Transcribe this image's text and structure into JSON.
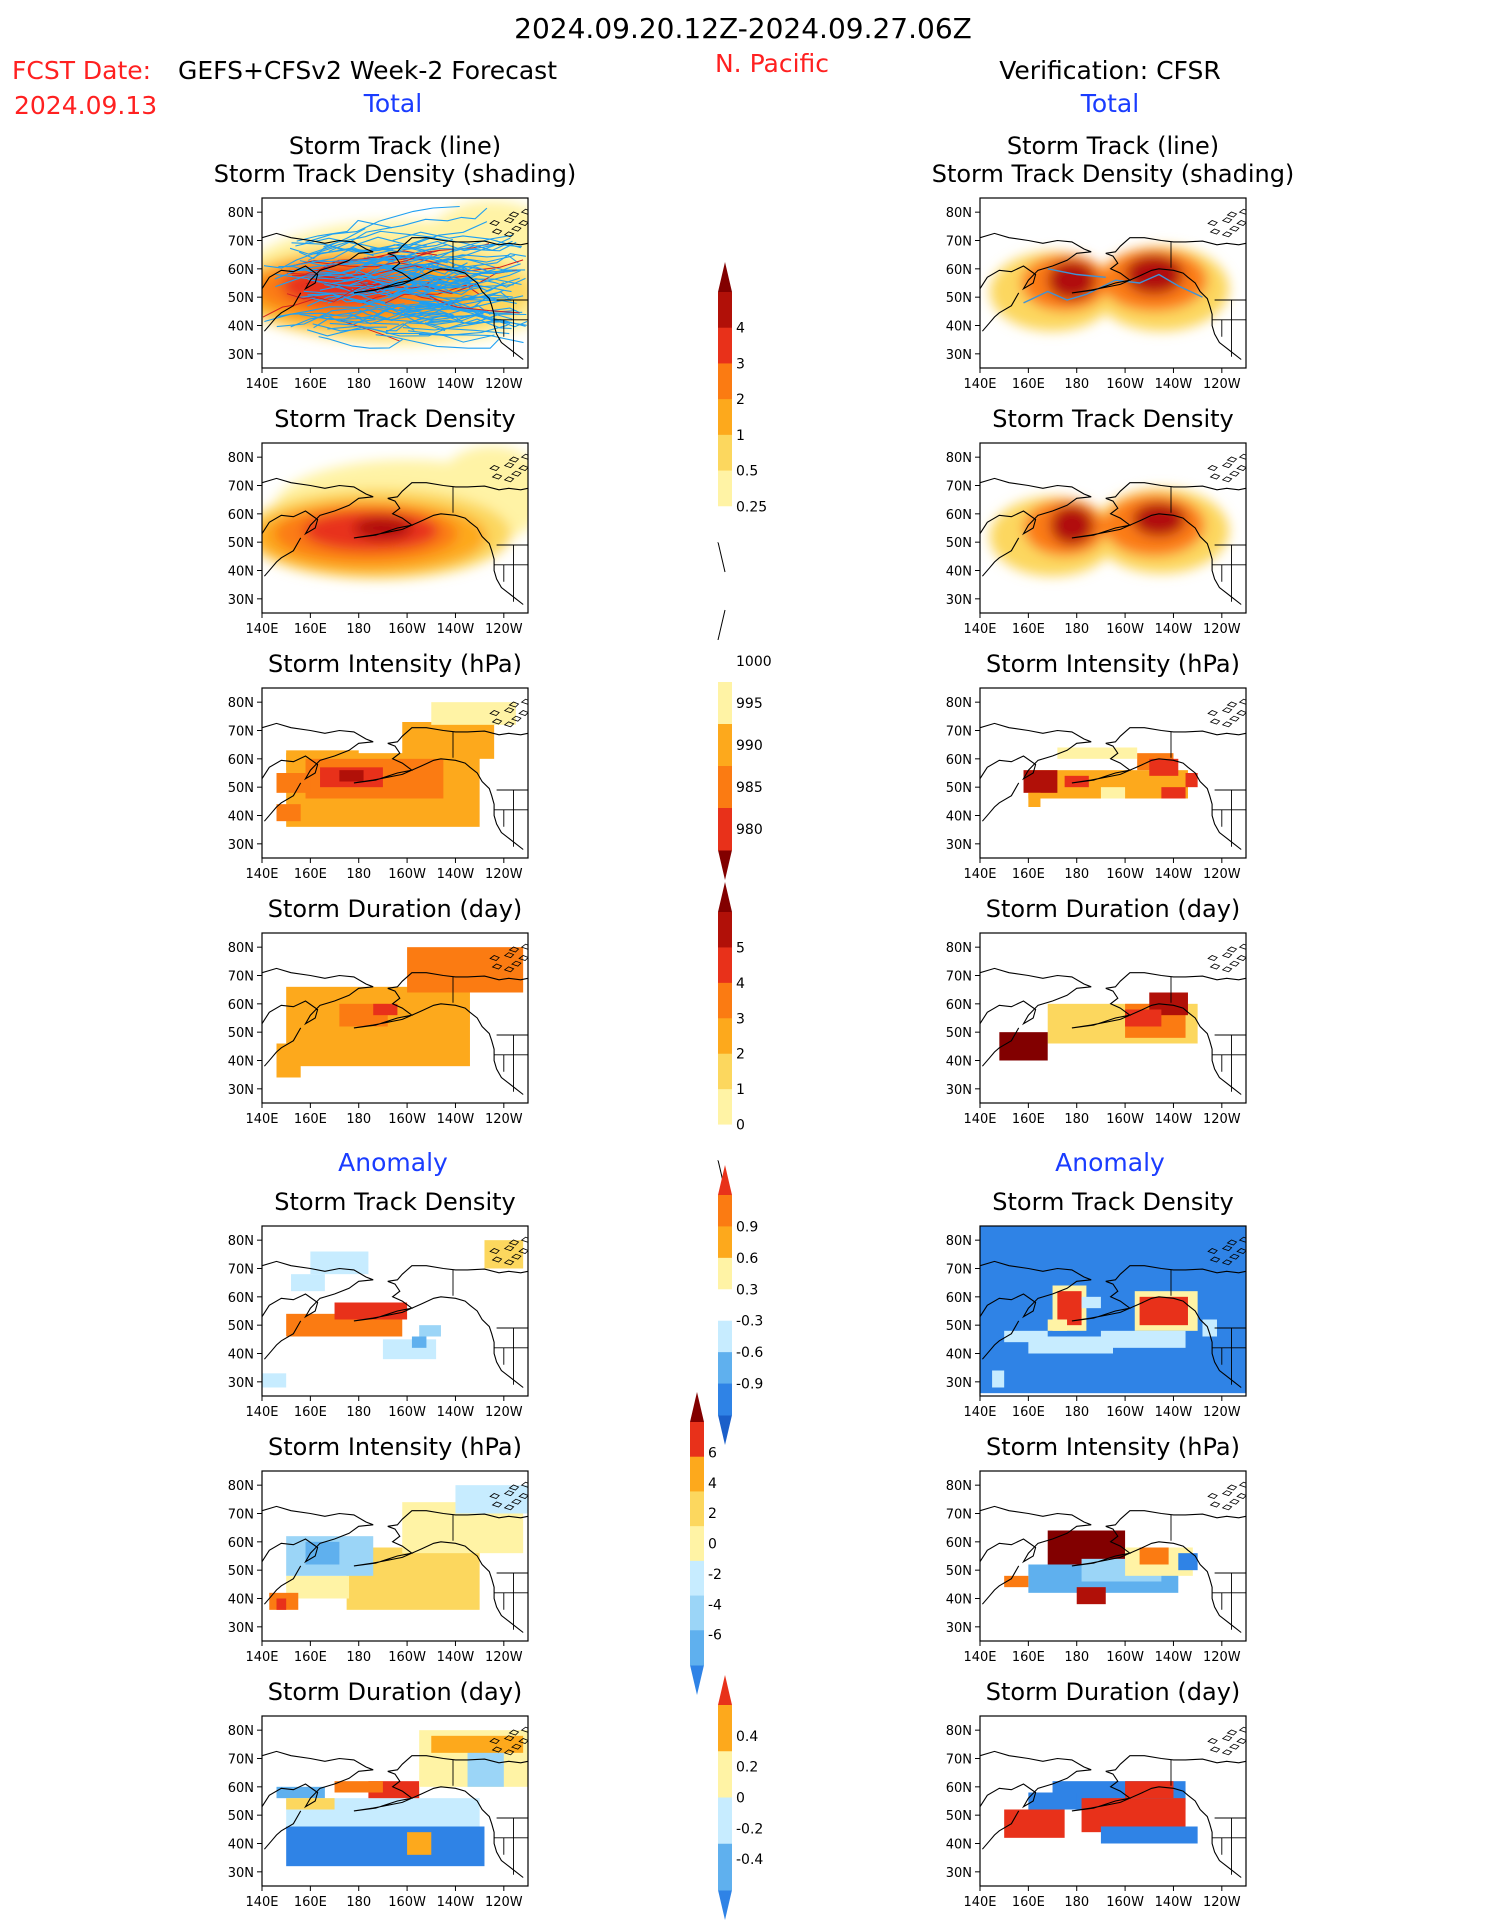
{
  "header": {
    "period": "2024.09.20.12Z-2024.09.27.06Z",
    "region": "N. Pacific",
    "fcst_date_label": "FCST Date:",
    "fcst_model": "GEFS+CFSv2 Week-2 Forecast",
    "fcst_date": "2024.09.13",
    "verification": "Verification: CFSR"
  },
  "section_labels": {
    "total": "Total",
    "anomaly": "Anomaly"
  },
  "panel_titles": {
    "track_line": "Storm Track (line)",
    "track_shading": "Storm Track Density (shading)",
    "density": "Storm Track Density",
    "intensity": "Storm Intensity (hPa)",
    "duration": "Storm Duration (day)"
  },
  "axes": {
    "lon_ticks": [
      "140E",
      "160E",
      "180",
      "160W",
      "140W",
      "120W"
    ],
    "lat_ticks": [
      "80N",
      "70N",
      "60N",
      "50N",
      "40N",
      "30N"
    ]
  },
  "colors": {
    "warm": [
      "#fff3a5",
      "#fcd75e",
      "#fda91c",
      "#fb7b12",
      "#e8311a",
      "#b11008",
      "#820000"
    ],
    "cool": [
      "#c7ecff",
      "#9bd5f7",
      "#5fb0ee",
      "#2f83e6",
      "#1b5fc9"
    ],
    "track_forecast": "#1e9ff2",
    "track_verification": "#3f93d6",
    "title_red": "#ff2020",
    "label_blue": "#1a3cff"
  },
  "colorbars": [
    {
      "id": "density-total",
      "labels": [
        "4",
        "3",
        "2",
        "1",
        "0.5",
        "0.25"
      ]
    },
    {
      "id": "intensity-total",
      "labels": [
        "1000",
        "995",
        "990",
        "985",
        "980"
      ]
    },
    {
      "id": "duration-total",
      "labels": [
        "5",
        "4",
        "3",
        "2",
        "1",
        "0"
      ]
    },
    {
      "id": "density-anomaly",
      "labels": [
        "0.9",
        "0.6",
        "0.3",
        "-0.3",
        "-0.6",
        "-0.9"
      ]
    },
    {
      "id": "intensity-anomaly",
      "labels": [
        "6",
        "4",
        "2",
        "0",
        "-2",
        "-4",
        "-6"
      ]
    },
    {
      "id": "duration-anomaly",
      "labels": [
        "0.4",
        "0.2",
        "0",
        "-0.2",
        "-0.4"
      ]
    }
  ],
  "chart_data": [
    {
      "id": "fcst-track",
      "type": "heatmap",
      "title": "Storm Track (line) / Storm Track Density (shading)",
      "source": "GEFS+CFSv2",
      "field": "track density with storm track lines"
    },
    {
      "id": "fcst-density",
      "type": "heatmap",
      "title": "Storm Track Density",
      "source": "GEFS+CFSv2",
      "scale": [
        0.25,
        0.5,
        1,
        2,
        3,
        4
      ]
    },
    {
      "id": "fcst-intensity",
      "type": "heatmap",
      "title": "Storm Intensity (hPa)",
      "source": "GEFS+CFSv2",
      "scale": [
        980,
        985,
        990,
        995,
        1000
      ]
    },
    {
      "id": "fcst-duration",
      "type": "heatmap",
      "title": "Storm Duration (day)",
      "source": "GEFS+CFSv2",
      "scale": [
        0,
        1,
        2,
        3,
        4,
        5
      ]
    },
    {
      "id": "fcst-density-anom",
      "type": "heatmap",
      "title": "Storm Track Density",
      "source": "GEFS+CFSv2",
      "anomaly": true,
      "scale": [
        -0.9,
        -0.6,
        -0.3,
        0.3,
        0.6,
        0.9
      ]
    },
    {
      "id": "fcst-intensity-anom",
      "type": "heatmap",
      "title": "Storm Intensity (hPa)",
      "source": "GEFS+CFSv2",
      "anomaly": true,
      "scale": [
        -6,
        -4,
        -2,
        0,
        2,
        4,
        6
      ]
    },
    {
      "id": "fcst-duration-anom",
      "type": "heatmap",
      "title": "Storm Duration (day)",
      "source": "GEFS+CFSv2",
      "anomaly": true,
      "scale": [
        -0.4,
        -0.2,
        0,
        0.2,
        0.4
      ]
    },
    {
      "id": "ver-track",
      "type": "heatmap",
      "title": "Storm Track (line) / Storm Track Density (shading)",
      "source": "CFSR"
    },
    {
      "id": "ver-density",
      "type": "heatmap",
      "title": "Storm Track Density",
      "source": "CFSR"
    },
    {
      "id": "ver-intensity",
      "type": "heatmap",
      "title": "Storm Intensity (hPa)",
      "source": "CFSR"
    },
    {
      "id": "ver-duration",
      "type": "heatmap",
      "title": "Storm Duration (day)",
      "source": "CFSR"
    },
    {
      "id": "ver-density-anom",
      "type": "heatmap",
      "title": "Storm Track Density",
      "source": "CFSR",
      "anomaly": true
    },
    {
      "id": "ver-intensity-anom",
      "type": "heatmap",
      "title": "Storm Intensity (hPa)",
      "source": "CFSR",
      "anomaly": true
    },
    {
      "id": "ver-duration-anom",
      "type": "heatmap",
      "title": "Storm Duration (day)",
      "source": "CFSR",
      "anomaly": true
    }
  ]
}
